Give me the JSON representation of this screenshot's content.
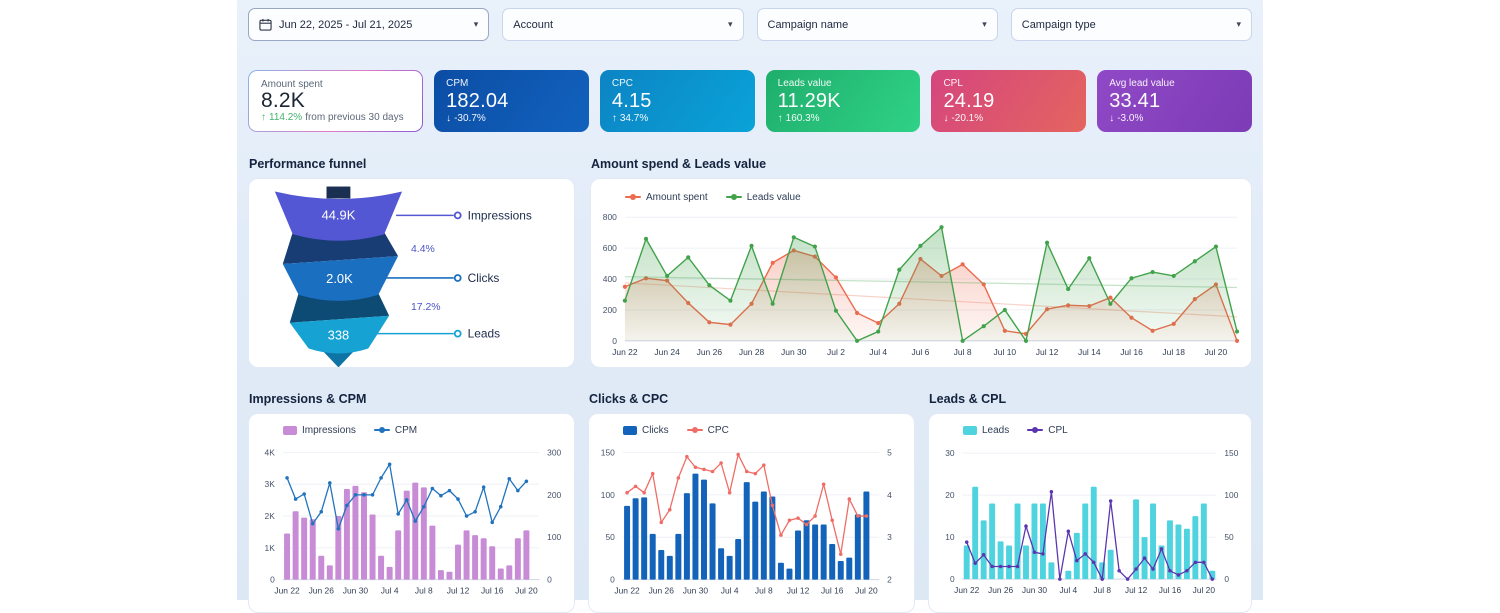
{
  "page": {
    "board_bg": "#e4eef9",
    "canvas_bg": "#ffffff"
  },
  "filters": [
    {
      "label": "Jun 22, 2025 - Jul 21, 2025",
      "icon": "calendar"
    },
    {
      "label": "Account"
    },
    {
      "label": "Campaign name"
    },
    {
      "label": "Campaign type"
    }
  ],
  "kpis": [
    {
      "label": "Amount spent",
      "value": "8.2K",
      "arrow": "↑",
      "delta": "114.2%",
      "suffix": "from previous 30 days",
      "delta_color": "#43b26d"
    },
    {
      "label": "CPM",
      "value": "182.04",
      "arrow": "↓",
      "delta": "-30.7%",
      "gradient": [
        "#0c4da5",
        "#1162bd"
      ]
    },
    {
      "label": "CPC",
      "value": "4.15",
      "arrow": "↑",
      "delta": "34.7%",
      "gradient": [
        "#0c84c4",
        "#0aa3d8"
      ]
    },
    {
      "label": "Leads value",
      "value": "11.29K",
      "arrow": "↑",
      "delta": "160.3%",
      "gradient": [
        "#1fae6c",
        "#2fd287"
      ]
    },
    {
      "label": "CPL",
      "value": "24.19",
      "arrow": "↓",
      "delta": "-20.1%",
      "gradient": [
        "#d5457e",
        "#e4655f"
      ]
    },
    {
      "label": "Avg lead value",
      "value": "33.41",
      "arrow": "↓",
      "delta": "-3.0%",
      "gradient": [
        "#9049c6",
        "#7d3bb6"
      ]
    }
  ],
  "funnel": {
    "title": "Performance funnel",
    "stages": [
      {
        "label": "Impressions",
        "value": "44.9K",
        "color": "#5457d3"
      },
      {
        "label": "Clicks",
        "value": "2.0K",
        "color": "#1b6fc0",
        "conversion": "4.4%"
      },
      {
        "label": "Leads",
        "value": "338",
        "color": "#16a3d4",
        "conversion": "17.2%"
      }
    ]
  },
  "dates": [
    "Jun 22",
    "Jun 23",
    "Jun 24",
    "Jun 25",
    "Jun 26",
    "Jun 27",
    "Jun 28",
    "Jun 29",
    "Jun 30",
    "Jul 1",
    "Jul 2",
    "Jul 3",
    "Jul 4",
    "Jul 5",
    "Jul 6",
    "Jul 7",
    "Jul 8",
    "Jul 9",
    "Jul 10",
    "Jul 11",
    "Jul 12",
    "Jul 13",
    "Jul 14",
    "Jul 15",
    "Jul 16",
    "Jul 17",
    "Jul 18",
    "Jul 19",
    "Jul 20",
    "Jul 21"
  ],
  "chart_data": [
    {
      "id": "main",
      "type": "line",
      "title": "Amount spend & Leads value",
      "x_ref": "dates",
      "x_tick_every": 2,
      "ylim": [
        0,
        800
      ],
      "yticks": [
        0,
        200,
        400,
        600,
        800
      ],
      "legend_position": "top",
      "grid": true,
      "series": [
        {
          "name": "Amount spent",
          "color": "#ec6a4d",
          "values": [
            350,
            405,
            390,
            245,
            120,
            105,
            240,
            505,
            585,
            545,
            410,
            180,
            115,
            240,
            530,
            420,
            495,
            365,
            65,
            45,
            205,
            230,
            225,
            280,
            150,
            65,
            110,
            270,
            365,
            0
          ],
          "trend": [
            375,
            155
          ]
        },
        {
          "name": "Leads value",
          "color": "#41a24b",
          "values": [
            260,
            660,
            420,
            540,
            360,
            260,
            615,
            240,
            670,
            610,
            195,
            0,
            60,
            460,
            615,
            735,
            0,
            95,
            200,
            0,
            635,
            335,
            535,
            240,
            405,
            445,
            420,
            515,
            610,
            60
          ],
          "trend": [
            415,
            345
          ]
        }
      ]
    },
    {
      "id": "impressions_cpm",
      "type": "bar+line",
      "title": "Impressions & CPM",
      "x_ref": "dates",
      "x_tick_every": 4,
      "grid": true,
      "bar": {
        "name": "Impressions",
        "color": "#c88cd6",
        "axis_max": 4000,
        "ticks": [
          [
            0,
            "0"
          ],
          [
            1000,
            "1K"
          ],
          [
            2000,
            "2K"
          ],
          [
            3000,
            "3K"
          ],
          [
            4000,
            "4K"
          ]
        ],
        "values": [
          1450,
          2150,
          1950,
          1900,
          750,
          450,
          2000,
          2850,
          2950,
          2750,
          2050,
          750,
          400,
          1550,
          2800,
          3050,
          2900,
          1700,
          300,
          250,
          1100,
          1550,
          1400,
          1300,
          1050,
          350,
          450,
          1300,
          1550,
          0
        ]
      },
      "line": {
        "name": "CPM",
        "color": "#2273bd",
        "axis_min": 0,
        "axis_max": 300,
        "ticks": [
          [
            0,
            "0"
          ],
          [
            100,
            "100"
          ],
          [
            200,
            "200"
          ],
          [
            300,
            "300"
          ]
        ],
        "values": [
          240,
          190,
          202,
          132,
          160,
          228,
          120,
          175,
          200,
          200,
          200,
          240,
          272,
          155,
          188,
          138,
          172,
          215,
          198,
          210,
          190,
          150,
          160,
          218,
          135,
          172,
          238,
          210,
          232
        ]
      }
    },
    {
      "id": "clicks_cpc",
      "type": "bar+line",
      "title": "Clicks & CPC",
      "x_ref": "dates",
      "x_tick_every": 4,
      "grid": true,
      "bar": {
        "name": "Clicks",
        "color": "#1463bb",
        "axis_max": 150,
        "ticks": [
          [
            0,
            "0"
          ],
          [
            50,
            "50"
          ],
          [
            100,
            "100"
          ],
          [
            150,
            "150"
          ]
        ],
        "values": [
          87,
          96,
          97,
          54,
          35,
          28,
          54,
          102,
          125,
          118,
          90,
          37,
          28,
          48,
          115,
          92,
          104,
          98,
          20,
          13,
          58,
          70,
          65,
          65,
          42,
          22,
          26,
          77,
          104,
          0
        ]
      },
      "line": {
        "name": "CPC",
        "color": "#ef6d66",
        "axis_min": 2,
        "axis_max": 5,
        "ticks": [
          [
            2,
            "2"
          ],
          [
            3,
            "3"
          ],
          [
            4,
            "4"
          ],
          [
            5,
            "5"
          ]
        ],
        "values": [
          4.05,
          4.2,
          4.05,
          4.5,
          3.35,
          3.65,
          4.4,
          4.9,
          4.65,
          4.6,
          4.55,
          4.75,
          4.05,
          4.95,
          4.55,
          4.5,
          4.7,
          3.75,
          3.05,
          3.4,
          3.45,
          3.3,
          3.5,
          4.25,
          3.4,
          2.6,
          3.9,
          3.5,
          3.5
        ]
      }
    },
    {
      "id": "leads_cpl",
      "type": "bar+line",
      "title": "Leads & CPL",
      "x_ref": "dates",
      "x_tick_every": 4,
      "grid": true,
      "bar": {
        "name": "Leads",
        "color": "#4fd3de",
        "axis_max": 30,
        "ticks": [
          [
            0,
            "0"
          ],
          [
            10,
            "10"
          ],
          [
            20,
            "20"
          ],
          [
            30,
            "30"
          ]
        ],
        "values": [
          8,
          22,
          14,
          18,
          9,
          8,
          18,
          8,
          18,
          18,
          4,
          0,
          2,
          11,
          18,
          22,
          4,
          7,
          0,
          0,
          19,
          10,
          18,
          8,
          14,
          13,
          12,
          15,
          18,
          2
        ]
      },
      "line": {
        "name": "CPL",
        "color": "#5b35b0",
        "axis_min": 0,
        "axis_max": 150,
        "ticks": [
          [
            0,
            "0"
          ],
          [
            50,
            "50"
          ],
          [
            100,
            "100"
          ],
          [
            150,
            "150"
          ]
        ],
        "values": [
          44,
          19,
          29,
          15,
          15,
          15,
          15,
          63,
          32,
          30,
          104,
          0,
          57,
          22,
          30,
          20,
          0,
          93,
          10,
          0,
          12,
          25,
          12,
          36,
          10,
          5,
          10,
          20,
          20,
          0
        ]
      }
    }
  ]
}
